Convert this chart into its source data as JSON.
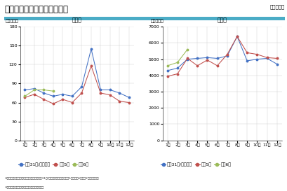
{
  "title": "延べ宿泊者数の推移（年別）",
  "subtitle_left": "新潟県",
  "subtitle_right": "全　国",
  "ylabel_left": "（万人泊）",
  "ylabel_right": "（万人泊）",
  "months": [
    "1月",
    "2月",
    "3月",
    "4月",
    "5月",
    "6月",
    "7月",
    "8月",
    "9月",
    "10月",
    "11月",
    "12月"
  ],
  "left": {
    "ylim": [
      0,
      180
    ],
    "yticks": [
      0,
      30,
      60,
      90,
      120,
      150,
      180
    ],
    "series": {
      "blue": [
        80,
        82,
        75,
        70,
        73,
        70,
        85,
        145,
        80,
        80,
        75,
        68
      ],
      "red": [
        68,
        73,
        65,
        58,
        65,
        60,
        75,
        118,
        75,
        72,
        62,
        60
      ],
      "green": [
        70,
        80,
        80,
        78,
        null,
        null,
        null,
        null,
        null,
        null,
        null,
        null
      ]
    }
  },
  "right": {
    "ylim": [
      0,
      7000
    ],
    "yticks": [
      0,
      1000,
      2000,
      3000,
      4000,
      5000,
      6000,
      7000
    ],
    "series": {
      "blue": [
        4300,
        4450,
        5000,
        5050,
        5100,
        5050,
        5200,
        6400,
        4900,
        5000,
        5050,
        4700
      ],
      "red": [
        3950,
        4100,
        5050,
        4600,
        4950,
        4600,
        5300,
        6400,
        5400,
        5300,
        5100,
        5050
      ],
      "green": [
        4600,
        4800,
        5600,
        null,
        null,
        null,
        null,
        null,
        null,
        null,
        null,
        null
      ]
    }
  },
  "legend_labels": [
    "平成31年/令和元年",
    "令和5年",
    "令和6年"
  ],
  "colors": {
    "blue": "#4472C4",
    "red": "#C0504D",
    "green": "#9BBB59"
  },
  "note1": "※数値は「宿泊旅行統計調査」による（平成31年/令和元年は確定値、令和5年、令和6年は第2次速報値）。",
  "note2": "※端数処理により合計値が異なる場合がある。",
  "header_color": "#4BACC6",
  "logo_text": "国土交通省",
  "title_fontsize": 8.5,
  "axis_fontsize": 4.5,
  "label_fontsize": 4.5,
  "legend_fontsize": 4.5,
  "subtitle_fontsize": 5.5,
  "note_fontsize": 3.2
}
